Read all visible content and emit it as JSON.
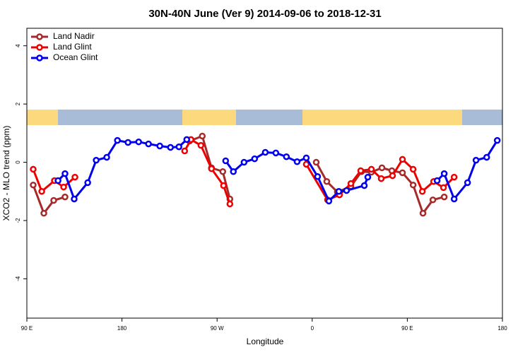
{
  "chart_data": {
    "type": "line",
    "title": "30N-40N June (Ver 9)   2014-09-06 to 2018-12-31",
    "xlabel": "Longitude",
    "ylabel": "XCO2 - MLO trend (ppm)",
    "xlim": [
      90,
      540
    ],
    "ylim": [
      -5.35,
      4.6
    ],
    "xticks": [
      {
        "value": 90,
        "label": "90 E"
      },
      180,
      {
        "value": 270,
        "label": "90 W"
      },
      {
        "value": 360,
        "label": "0"
      },
      {
        "value": 450,
        "label": "90 E"
      },
      {
        "value": 540,
        "label": "180"
      }
    ],
    "yticks": [
      -4,
      -2,
      0,
      2,
      4
    ],
    "legend": "upper left",
    "series": [
      {
        "name": "Land Nadir",
        "color": "#a52a2a",
        "x": [
          96.0,
          106.1,
          115.4,
          126.1,
          null,
          244.0,
          256.0,
          264.7,
          275.4,
          282.1,
          null,
          363.8,
          373.8,
          383.8,
          396.6,
          406.6,
          416.0,
          426.0,
          435.4,
          445.4,
          455.5,
          464.8,
          474.2,
          484.9
        ],
        "values": [
          -0.78,
          -1.75,
          -1.31,
          -1.19,
          null,
          0.73,
          0.9,
          -0.19,
          -0.32,
          -1.26,
          null,
          0,
          -0.66,
          -1.02,
          -0.83,
          -0.32,
          -0.34,
          -0.19,
          -0.29,
          -0.36,
          -0.78,
          -1.75,
          -1.29,
          -1.19
        ]
      },
      {
        "name": "Land Glint",
        "color": "#ee0000",
        "x": [
          96.0,
          104.1,
          116.1,
          124.8,
          135.5,
          null,
          239.3,
          245.3,
          254.7,
          264.7,
          276.1,
          282.1,
          null,
          354.4,
          374.5,
          385.8,
          396.6,
          405.9,
          416.0,
          425.3,
          436.0,
          445.4,
          455.5,
          464.2,
          474.9,
          484.2,
          494.3
        ],
        "values": [
          -0.24,
          -1.0,
          -0.63,
          -0.85,
          -0.51,
          null,
          0.39,
          0.78,
          0.58,
          -0.22,
          -0.8,
          -1.43,
          null,
          -0.07,
          -1.29,
          -1.12,
          -0.73,
          -0.29,
          -0.24,
          -0.56,
          -0.46,
          0.1,
          -0.24,
          -1.0,
          -0.66,
          -0.87,
          -0.51
        ]
      },
      {
        "name": "Ocean Glint",
        "color": "#0000ee",
        "x": [
          119.5,
          126.1,
          134.8,
          147.6,
          155.6,
          165.6,
          175.7,
          185.7,
          195.8,
          205.1,
          215.8,
          225.9,
          233.9,
          241.3,
          null,
          278.1,
          285.4,
          295.5,
          305.5,
          315.6,
          325.6,
          335.6,
          345.7,
          354.4,
          365.1,
          375.8,
          385.2,
          392.5,
          409.3,
          412.6,
          null,
          478.2,
          484.9,
          494.3,
          507.0,
          515.0,
          525.1,
          535.1
        ],
        "values": [
          -0.63,
          -0.39,
          -1.26,
          -0.7,
          0.07,
          0.17,
          0.75,
          0.68,
          0.7,
          0.63,
          0.56,
          0.51,
          0.53,
          0.78,
          null,
          0.05,
          -0.32,
          0.0,
          0.12,
          0.34,
          0.32,
          0.19,
          0.02,
          0.15,
          -0.49,
          -1.33,
          -1.0,
          -0.97,
          -0.8,
          -0.51,
          null,
          -0.63,
          -0.39,
          -1.26,
          -0.7,
          0.07,
          0.17,
          0.75
        ]
      }
    ]
  }
}
